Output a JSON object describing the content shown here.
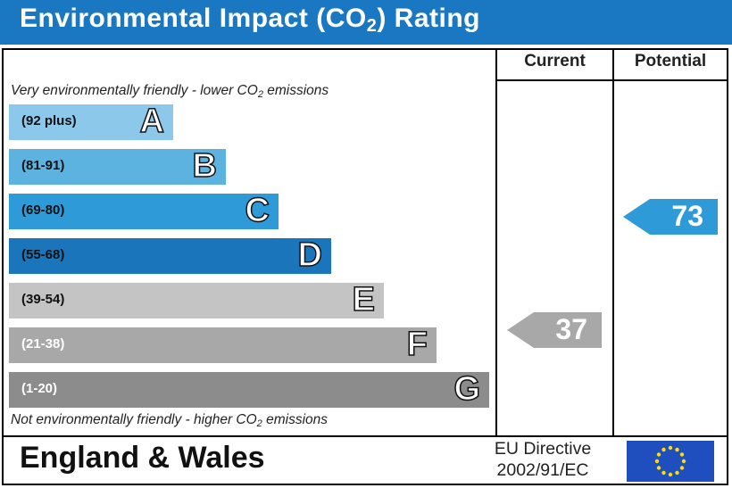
{
  "header": {
    "title_prefix": "Environmental Impact (CO",
    "title_sub": "2",
    "title_suffix": ") Rating"
  },
  "columns": {
    "current": "Current",
    "potential": "Potential"
  },
  "notes": {
    "top_prefix": "Very environmentally friendly - lower CO",
    "top_sub": "2",
    "top_suffix": " emissions",
    "bottom_prefix": "Not environmentally friendly - higher CO",
    "bottom_sub": "2",
    "bottom_suffix": " emissions"
  },
  "bands": [
    {
      "range": "(92 plus)",
      "letter": "A",
      "color": "#8cc8ea",
      "text_color": "#111111"
    },
    {
      "range": "(81-91)",
      "letter": "B",
      "color": "#5db3e0",
      "text_color": "#111111"
    },
    {
      "range": "(69-80)",
      "letter": "C",
      "color": "#2e9bd8",
      "text_color": "#111111"
    },
    {
      "range": "(55-68)",
      "letter": "D",
      "color": "#1b75bb",
      "text_color": "#111111"
    },
    {
      "range": "(39-54)",
      "letter": "E",
      "color": "#c4c4c4",
      "text_color": "#111111"
    },
    {
      "range": "(21-38)",
      "letter": "F",
      "color": "#a8a8a8",
      "text_color": "#ffffff"
    },
    {
      "range": "(1-20)",
      "letter": "G",
      "color": "#8c8c8c",
      "text_color": "#ffffff"
    }
  ],
  "ratings": {
    "current": {
      "value": "37",
      "color": "#a8a8a8"
    },
    "potential": {
      "value": "73",
      "color": "#2e9bd8"
    }
  },
  "footer": {
    "country": "England & Wales",
    "directive_line1": "EU Directive",
    "directive_line2": "2002/91/EC"
  }
}
